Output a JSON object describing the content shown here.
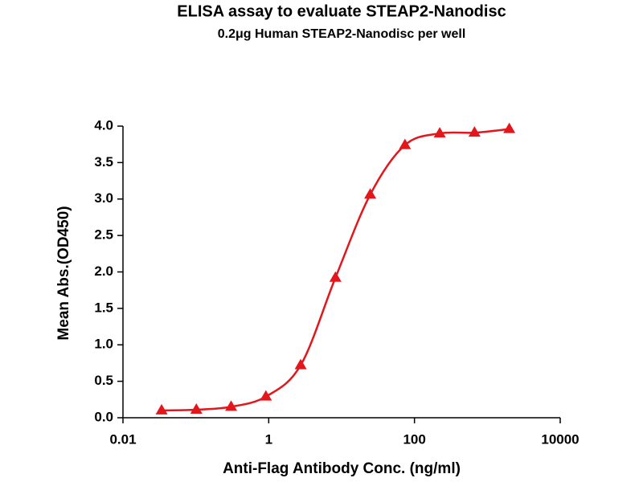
{
  "chart_data": {
    "type": "scatter",
    "title": "ELISA assay to evaluate STEAP2-Nanodisc",
    "subtitle": "0.2μg Human STEAP2-Nanodisc per well",
    "x_label": "Anti-Flag Antibody Conc. (ng/ml)",
    "y_label": "Mean Abs.(OD450)",
    "x_scale": "log",
    "xlim": [
      0.01,
      10000
    ],
    "xticks": [
      0.01,
      1,
      100,
      10000
    ],
    "ylim": [
      0,
      4
    ],
    "yticks": [
      {
        "value": 0,
        "label": "0.0"
      },
      {
        "value": 0.5,
        "label": "0.5"
      },
      {
        "value": 1,
        "label": "1.0"
      },
      {
        "value": 1.5,
        "label": "1.5"
      },
      {
        "value": 2,
        "label": "2.0"
      },
      {
        "value": 2.5,
        "label": "2.5"
      },
      {
        "value": 3,
        "label": "3.0"
      },
      {
        "value": 3.5,
        "label": "3.5"
      },
      {
        "value": 4,
        "label": "4.0"
      }
    ],
    "grid": false,
    "fit_curve": true,
    "series": [
      {
        "name": "STEAP2-Nanodisc",
        "color": "#e3161b",
        "x": [
          0.0339,
          0.1016,
          0.3048,
          0.9145,
          2.743,
          8.23,
          24.69,
          74.07,
          222.2,
          666.7,
          2000
        ],
        "values": [
          0.1,
          0.11,
          0.15,
          0.29,
          0.72,
          1.92,
          3.06,
          3.74,
          3.9,
          3.91,
          3.96
        ]
      }
    ]
  }
}
